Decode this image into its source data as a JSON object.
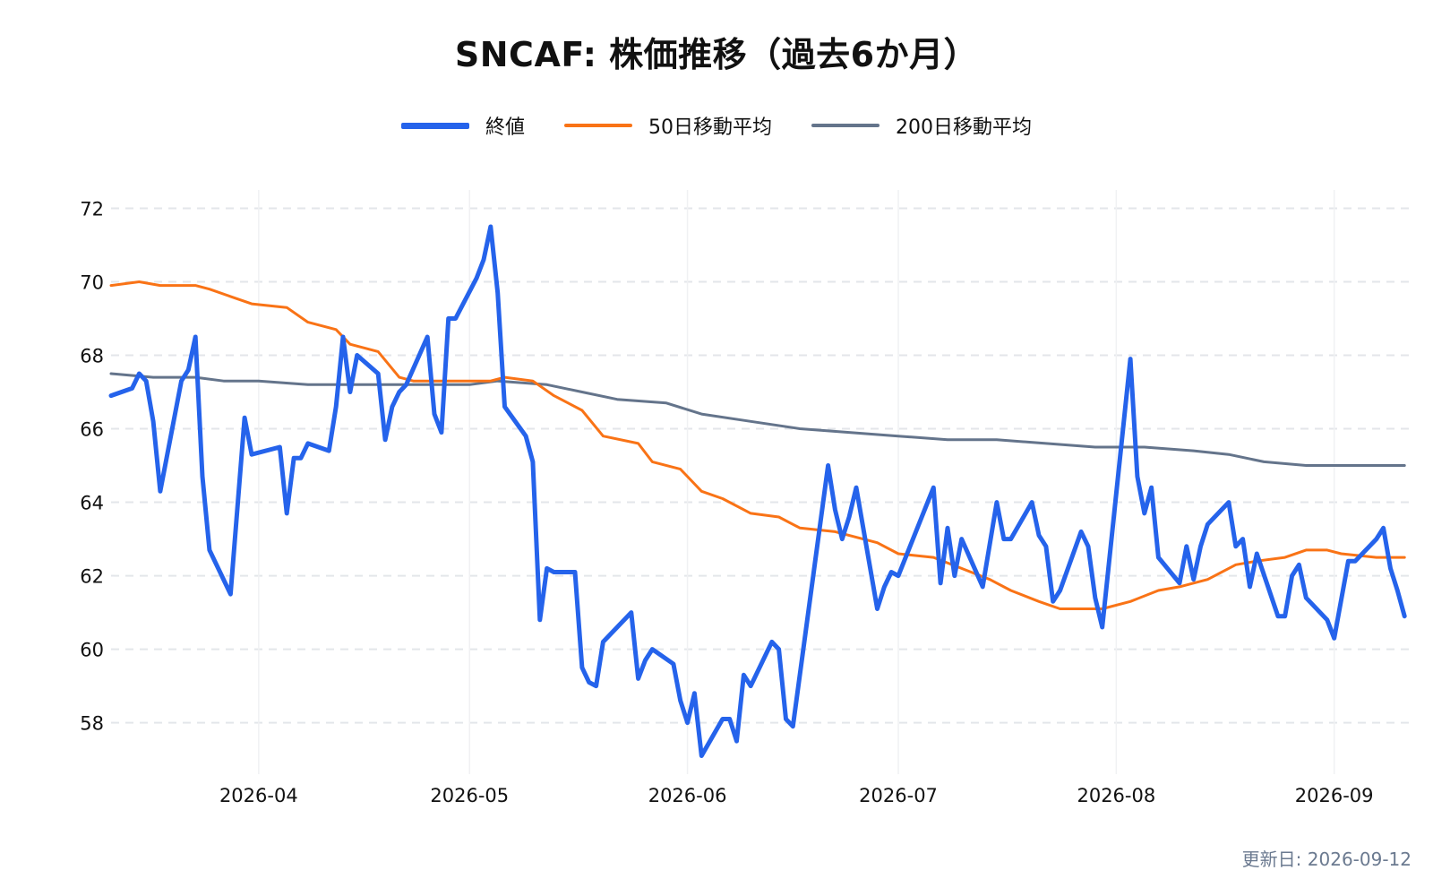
{
  "chart_data": {
    "type": "line",
    "title": "SNCAF: 株価推移（過去6か月）",
    "xlabel": "",
    "ylabel": "",
    "x_range": [
      "2026-03-11",
      "2026-09-12"
    ],
    "ylim": [
      56.6,
      72.5
    ],
    "yticks": [
      58,
      60,
      62,
      64,
      66,
      68,
      70,
      72
    ],
    "xticks": [
      "2026-04-01",
      "2026-05-01",
      "2026-06-01",
      "2026-07-01",
      "2026-08-01",
      "2026-09-01"
    ],
    "xtick_labels": [
      "2026-04",
      "2026-05",
      "2026-06",
      "2026-07",
      "2026-08",
      "2026-09"
    ],
    "grid": {
      "horizontal": "dashed",
      "vertical": "solid-light"
    },
    "legend_position": "top-center",
    "series": [
      {
        "name": "終値",
        "color": "#2563eb",
        "points": [
          [
            "2026-03-11",
            66.9
          ],
          [
            "2026-03-14",
            67.1
          ],
          [
            "2026-03-15",
            67.5
          ],
          [
            "2026-03-16",
            67.3
          ],
          [
            "2026-03-17",
            66.2
          ],
          [
            "2026-03-18",
            64.3
          ],
          [
            "2026-03-21",
            67.3
          ],
          [
            "2026-03-22",
            67.6
          ],
          [
            "2026-03-23",
            68.5
          ],
          [
            "2026-03-24",
            64.7
          ],
          [
            "2026-03-25",
            62.7
          ],
          [
            "2026-03-28",
            61.5
          ],
          [
            "2026-03-30",
            66.3
          ],
          [
            "2026-03-31",
            65.3
          ],
          [
            "2026-04-04",
            65.5
          ],
          [
            "2026-04-05",
            63.7
          ],
          [
            "2026-04-06",
            65.2
          ],
          [
            "2026-04-07",
            65.2
          ],
          [
            "2026-04-08",
            65.6
          ],
          [
            "2026-04-11",
            65.4
          ],
          [
            "2026-04-12",
            66.6
          ],
          [
            "2026-04-13",
            68.5
          ],
          [
            "2026-04-14",
            67.0
          ],
          [
            "2026-04-15",
            68.0
          ],
          [
            "2026-04-18",
            67.5
          ],
          [
            "2026-04-19",
            65.7
          ],
          [
            "2026-04-20",
            66.6
          ],
          [
            "2026-04-21",
            67.0
          ],
          [
            "2026-04-22",
            67.2
          ],
          [
            "2026-04-25",
            68.5
          ],
          [
            "2026-04-26",
            66.4
          ],
          [
            "2026-04-27",
            65.9
          ],
          [
            "2026-04-28",
            69.0
          ],
          [
            "2026-04-29",
            69.0
          ],
          [
            "2026-05-02",
            70.1
          ],
          [
            "2026-05-03",
            70.6
          ],
          [
            "2026-05-04",
            71.5
          ],
          [
            "2026-05-05",
            69.7
          ],
          [
            "2026-05-06",
            66.6
          ],
          [
            "2026-05-09",
            65.8
          ],
          [
            "2026-05-10",
            65.1
          ],
          [
            "2026-05-11",
            60.8
          ],
          [
            "2026-05-12",
            62.2
          ],
          [
            "2026-05-13",
            62.1
          ],
          [
            "2026-05-16",
            62.1
          ],
          [
            "2026-05-17",
            59.5
          ],
          [
            "2026-05-18",
            59.1
          ],
          [
            "2026-05-19",
            59.0
          ],
          [
            "2026-05-20",
            60.2
          ],
          [
            "2026-05-24",
            61.0
          ],
          [
            "2026-05-25",
            59.2
          ],
          [
            "2026-05-26",
            59.7
          ],
          [
            "2026-05-27",
            60.0
          ],
          [
            "2026-05-30",
            59.6
          ],
          [
            "2026-05-31",
            58.6
          ],
          [
            "2026-06-01",
            58.0
          ],
          [
            "2026-06-02",
            58.8
          ],
          [
            "2026-06-03",
            57.1
          ],
          [
            "2026-06-06",
            58.1
          ],
          [
            "2026-06-07",
            58.1
          ],
          [
            "2026-06-08",
            57.5
          ],
          [
            "2026-06-09",
            59.3
          ],
          [
            "2026-06-10",
            59.0
          ],
          [
            "2026-06-13",
            60.2
          ],
          [
            "2026-06-14",
            60.0
          ],
          [
            "2026-06-15",
            58.1
          ],
          [
            "2026-06-16",
            57.9
          ],
          [
            "2026-06-21",
            65.0
          ],
          [
            "2026-06-22",
            63.8
          ],
          [
            "2026-06-23",
            63.0
          ],
          [
            "2026-06-24",
            63.6
          ],
          [
            "2026-06-25",
            64.4
          ],
          [
            "2026-06-28",
            61.1
          ],
          [
            "2026-06-29",
            61.7
          ],
          [
            "2026-06-30",
            62.1
          ],
          [
            "2026-07-01",
            62.0
          ],
          [
            "2026-07-06",
            64.4
          ],
          [
            "2026-07-07",
            61.8
          ],
          [
            "2026-07-08",
            63.3
          ],
          [
            "2026-07-09",
            62.0
          ],
          [
            "2026-07-10",
            63.0
          ],
          [
            "2026-07-13",
            61.7
          ],
          [
            "2026-07-15",
            64.0
          ],
          [
            "2026-07-16",
            63.0
          ],
          [
            "2026-07-17",
            63.0
          ],
          [
            "2026-07-20",
            64.0
          ],
          [
            "2026-07-21",
            63.1
          ],
          [
            "2026-07-22",
            62.8
          ],
          [
            "2026-07-23",
            61.3
          ],
          [
            "2026-07-24",
            61.6
          ],
          [
            "2026-07-27",
            63.2
          ],
          [
            "2026-07-28",
            62.8
          ],
          [
            "2026-07-29",
            61.4
          ],
          [
            "2026-07-30",
            60.6
          ],
          [
            "2026-08-03",
            67.9
          ],
          [
            "2026-08-04",
            64.7
          ],
          [
            "2026-08-05",
            63.7
          ],
          [
            "2026-08-06",
            64.4
          ],
          [
            "2026-08-07",
            62.5
          ],
          [
            "2026-08-10",
            61.8
          ],
          [
            "2026-08-11",
            62.8
          ],
          [
            "2026-08-12",
            61.9
          ],
          [
            "2026-08-13",
            62.8
          ],
          [
            "2026-08-14",
            63.4
          ],
          [
            "2026-08-17",
            64.0
          ],
          [
            "2026-08-18",
            62.8
          ],
          [
            "2026-08-19",
            63.0
          ],
          [
            "2026-08-20",
            61.7
          ],
          [
            "2026-08-21",
            62.6
          ],
          [
            "2026-08-24",
            60.9
          ],
          [
            "2026-08-25",
            60.9
          ],
          [
            "2026-08-26",
            62.0
          ],
          [
            "2026-08-27",
            62.3
          ],
          [
            "2026-08-28",
            61.4
          ],
          [
            "2026-08-31",
            60.8
          ],
          [
            "2026-09-01",
            60.3
          ],
          [
            "2026-09-03",
            62.4
          ],
          [
            "2026-09-04",
            62.4
          ],
          [
            "2026-09-07",
            63.0
          ],
          [
            "2026-09-08",
            63.3
          ],
          [
            "2026-09-09",
            62.2
          ],
          [
            "2026-09-10",
            61.6
          ],
          [
            "2026-09-11",
            60.9
          ]
        ]
      },
      {
        "name": "50日移動平均",
        "color": "#f97316",
        "points": [
          [
            "2026-03-11",
            69.9
          ],
          [
            "2026-03-15",
            70.0
          ],
          [
            "2026-03-18",
            69.9
          ],
          [
            "2026-03-23",
            69.9
          ],
          [
            "2026-03-25",
            69.8
          ],
          [
            "2026-03-28",
            69.6
          ],
          [
            "2026-03-31",
            69.4
          ],
          [
            "2026-04-05",
            69.3
          ],
          [
            "2026-04-08",
            68.9
          ],
          [
            "2026-04-12",
            68.7
          ],
          [
            "2026-04-14",
            68.3
          ],
          [
            "2026-04-18",
            68.1
          ],
          [
            "2026-04-21",
            67.4
          ],
          [
            "2026-04-23",
            67.3
          ],
          [
            "2026-04-28",
            67.3
          ],
          [
            "2026-05-04",
            67.3
          ],
          [
            "2026-05-06",
            67.4
          ],
          [
            "2026-05-10",
            67.3
          ],
          [
            "2026-05-13",
            66.9
          ],
          [
            "2026-05-17",
            66.5
          ],
          [
            "2026-05-20",
            65.8
          ],
          [
            "2026-05-25",
            65.6
          ],
          [
            "2026-05-27",
            65.1
          ],
          [
            "2026-05-31",
            64.9
          ],
          [
            "2026-06-03",
            64.3
          ],
          [
            "2026-06-06",
            64.1
          ],
          [
            "2026-06-10",
            63.7
          ],
          [
            "2026-06-14",
            63.6
          ],
          [
            "2026-06-17",
            63.3
          ],
          [
            "2026-06-22",
            63.2
          ],
          [
            "2026-06-28",
            62.9
          ],
          [
            "2026-07-01",
            62.6
          ],
          [
            "2026-07-06",
            62.5
          ],
          [
            "2026-07-10",
            62.2
          ],
          [
            "2026-07-14",
            61.9
          ],
          [
            "2026-07-17",
            61.6
          ],
          [
            "2026-07-21",
            61.3
          ],
          [
            "2026-07-24",
            61.1
          ],
          [
            "2026-07-30",
            61.1
          ],
          [
            "2026-08-03",
            61.3
          ],
          [
            "2026-08-07",
            61.6
          ],
          [
            "2026-08-10",
            61.7
          ],
          [
            "2026-08-14",
            61.9
          ],
          [
            "2026-08-18",
            62.3
          ],
          [
            "2026-08-21",
            62.4
          ],
          [
            "2026-08-25",
            62.5
          ],
          [
            "2026-08-28",
            62.7
          ],
          [
            "2026-08-31",
            62.7
          ],
          [
            "2026-09-02",
            62.6
          ],
          [
            "2026-09-07",
            62.5
          ],
          [
            "2026-09-11",
            62.5
          ]
        ]
      },
      {
        "name": "200日移動平均",
        "color": "#64748b",
        "points": [
          [
            "2026-03-11",
            67.5
          ],
          [
            "2026-03-17",
            67.4
          ],
          [
            "2026-03-23",
            67.4
          ],
          [
            "2026-03-27",
            67.3
          ],
          [
            "2026-04-01",
            67.3
          ],
          [
            "2026-04-08",
            67.2
          ],
          [
            "2026-04-15",
            67.2
          ],
          [
            "2026-04-23",
            67.2
          ],
          [
            "2026-05-01",
            67.2
          ],
          [
            "2026-05-05",
            67.3
          ],
          [
            "2026-05-12",
            67.2
          ],
          [
            "2026-05-17",
            67.0
          ],
          [
            "2026-05-22",
            66.8
          ],
          [
            "2026-05-29",
            66.7
          ],
          [
            "2026-06-03",
            66.4
          ],
          [
            "2026-06-10",
            66.2
          ],
          [
            "2026-06-17",
            66.0
          ],
          [
            "2026-06-24",
            65.9
          ],
          [
            "2026-07-01",
            65.8
          ],
          [
            "2026-07-08",
            65.7
          ],
          [
            "2026-07-15",
            65.7
          ],
          [
            "2026-07-22",
            65.6
          ],
          [
            "2026-07-29",
            65.5
          ],
          [
            "2026-08-05",
            65.5
          ],
          [
            "2026-08-12",
            65.4
          ],
          [
            "2026-08-17",
            65.3
          ],
          [
            "2026-08-22",
            65.1
          ],
          [
            "2026-08-28",
            65.0
          ],
          [
            "2026-09-02",
            65.0
          ],
          [
            "2026-09-07",
            65.0
          ],
          [
            "2026-09-11",
            65.0
          ]
        ]
      }
    ]
  },
  "footer": {
    "updated": "更新日: 2026-09-12"
  }
}
